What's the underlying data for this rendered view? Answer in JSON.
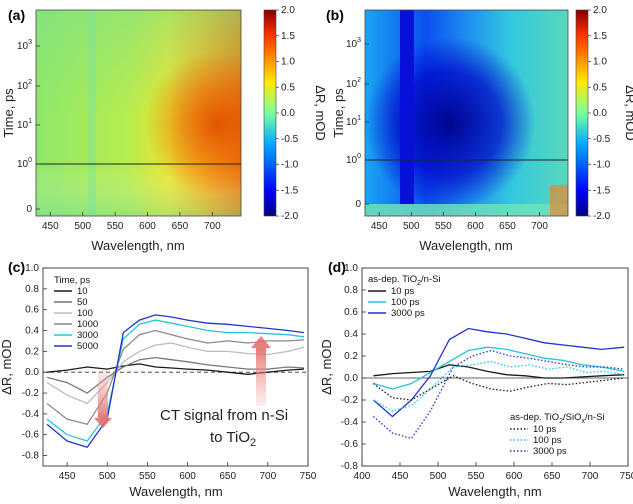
{
  "chart_data": [
    {
      "panel": "(a)",
      "type": "heatmap",
      "xlabel": "Wavelength, nm",
      "ylabel": "Time, ps",
      "colorbar_label": "ΔR, mOD",
      "xticks": [
        "450",
        "500",
        "550",
        "600",
        "650",
        "700"
      ],
      "yticks": [
        {
          "label": "0",
          "base": "0",
          "exp": ""
        },
        {
          "label": "10^0",
          "base": "10",
          "exp": "0"
        },
        {
          "label": "10^1",
          "base": "10",
          "exp": "1"
        },
        {
          "label": "10^2",
          "base": "10",
          "exp": "2"
        },
        {
          "label": "10^3",
          "base": "10",
          "exp": "3"
        }
      ],
      "cbar_ticks": [
        "2.0",
        "1.5",
        "1.0",
        "0.5",
        "0.0",
        "-0.5",
        "-1.0",
        "-1.5",
        "-2.0"
      ],
      "clim": [
        -2.0,
        2.0
      ],
      "reference_line_time_ps": 1
    },
    {
      "panel": "(b)",
      "type": "heatmap",
      "xlabel": "Wavelength, nm",
      "ylabel": "Time, ps",
      "colorbar_label": "ΔR, mOD",
      "xticks": [
        "450",
        "500",
        "550",
        "600",
        "650",
        "700"
      ],
      "yticks": [
        {
          "label": "0",
          "base": "0",
          "exp": ""
        },
        {
          "label": "10^0",
          "base": "10",
          "exp": "0"
        },
        {
          "label": "10^1",
          "base": "10",
          "exp": "1"
        },
        {
          "label": "10^2",
          "base": "10",
          "exp": "2"
        },
        {
          "label": "10^3",
          "base": "10",
          "exp": "3"
        }
      ],
      "cbar_ticks": [
        "2.0",
        "1.5",
        "1.0",
        "0.5",
        "0.0",
        "-0.5",
        "-1.0",
        "-1.5",
        "-2.0"
      ],
      "cbar_tick_display": [
        "2.0",
        "1.5",
        "1.0",
        "0.5",
        "0.0",
        "-0.5",
        "-1.0",
        "-1.5",
        "-2.0"
      ],
      "clim": [
        -2.0,
        2.0
      ],
      "reference_line_time_ps": 1
    },
    {
      "panel": "(c)",
      "type": "line",
      "xlabel": "Wavelength, nm",
      "ylabel": "ΔR, mOD",
      "xlim": [
        420,
        750
      ],
      "ylim": [
        -0.9,
        1.0
      ],
      "xticks": [
        "450",
        "500",
        "550",
        "600",
        "650",
        "700",
        "750"
      ],
      "yticks": [
        "1.0",
        "0.8",
        "0.6",
        "0.4",
        "0.2",
        "0.0",
        "-0.2",
        "-0.4",
        "-0.6",
        "-0.8"
      ],
      "legend_title": "Time, ps",
      "annotation_line1": "CT signal from n-Si",
      "annotation_line2_main": "to TiO",
      "annotation_line2_sub": "2",
      "series": [
        {
          "name": "10",
          "color": "#1a1a1a",
          "x": [
            425,
            450,
            475,
            500,
            520,
            540,
            560,
            580,
            600,
            625,
            650,
            675,
            700,
            725,
            745
          ],
          "y": [
            0.0,
            0.02,
            0.05,
            0.03,
            0.06,
            0.08,
            0.05,
            0.04,
            0.03,
            0.02,
            0.0,
            -0.02,
            0.0,
            0.02,
            0.03
          ]
        },
        {
          "name": "50",
          "color": "#777777",
          "x": [
            425,
            450,
            475,
            500,
            520,
            540,
            560,
            580,
            600,
            625,
            650,
            675,
            700,
            725,
            745
          ],
          "y": [
            -0.05,
            -0.1,
            -0.2,
            -0.05,
            0.05,
            0.12,
            0.14,
            0.12,
            0.1,
            0.07,
            0.05,
            0.03,
            0.03,
            0.05,
            0.04
          ]
        },
        {
          "name": "100",
          "color": "#bcbcbc",
          "x": [
            425,
            450,
            475,
            500,
            520,
            540,
            560,
            580,
            600,
            625,
            650,
            675,
            700,
            725,
            745
          ],
          "y": [
            -0.1,
            -0.22,
            -0.3,
            -0.1,
            0.1,
            0.2,
            0.26,
            0.28,
            0.24,
            0.2,
            0.2,
            0.18,
            0.17,
            0.2,
            0.24
          ]
        },
        {
          "name": "1000",
          "color": "#8a8a8a",
          "x": [
            425,
            450,
            475,
            500,
            520,
            540,
            560,
            580,
            600,
            625,
            650,
            675,
            700,
            725,
            745
          ],
          "y": [
            -0.3,
            -0.45,
            -0.5,
            -0.2,
            0.22,
            0.36,
            0.4,
            0.36,
            0.32,
            0.28,
            0.3,
            0.28,
            0.3,
            0.3,
            0.31
          ]
        },
        {
          "name": "3000",
          "color": "#27c4d8",
          "x": [
            425,
            450,
            475,
            500,
            520,
            540,
            560,
            580,
            600,
            625,
            650,
            675,
            700,
            725,
            745
          ],
          "y": [
            -0.45,
            -0.6,
            -0.66,
            -0.4,
            0.32,
            0.46,
            0.5,
            0.47,
            0.44,
            0.4,
            0.38,
            0.38,
            0.37,
            0.36,
            0.34
          ]
        },
        {
          "name": "5000",
          "color": "#2434cc",
          "x": [
            425,
            450,
            475,
            500,
            520,
            540,
            560,
            580,
            600,
            625,
            650,
            675,
            700,
            725,
            745
          ],
          "y": [
            -0.5,
            -0.66,
            -0.72,
            -0.45,
            0.38,
            0.5,
            0.55,
            0.53,
            0.5,
            0.47,
            0.46,
            0.44,
            0.42,
            0.4,
            0.38
          ]
        }
      ]
    },
    {
      "panel": "(d)",
      "type": "line",
      "xlabel": "Wavelength, nm",
      "ylabel": "ΔR, mOD",
      "xlim": [
        400,
        750
      ],
      "ylim": [
        -0.8,
        1.0
      ],
      "xticks": [
        "400",
        "450",
        "500",
        "550",
        "600",
        "650",
        "700",
        "750"
      ],
      "yticks": [
        "1.0",
        "0.8",
        "0.6",
        "0.4",
        "0.2",
        "0.0",
        "-0.2",
        "-0.4",
        "-0.6",
        "-0.8"
      ],
      "legend1_title_main": "as-dep. TiO",
      "legend1_title_sub": "2",
      "legend1_title_rest": "/n-Si",
      "legend2_title_main": "as-dep. TiO",
      "legend2_title_sub1": "2",
      "legend2_title_mid": "/SiO",
      "legend2_title_sub2": "x",
      "legend2_title_rest": "/n-Si",
      "series": [
        {
          "name": "10 ps",
          "group": 1,
          "dash": "solid",
          "color": "#1a1a1a",
          "x": [
            415,
            440,
            465,
            490,
            515,
            540,
            565,
            590,
            615,
            640,
            665,
            690,
            715,
            745
          ],
          "y": [
            0.02,
            0.04,
            0.05,
            0.06,
            0.12,
            0.1,
            0.06,
            0.03,
            0.02,
            0.0,
            0.0,
            0.01,
            0.02,
            0.03
          ]
        },
        {
          "name": "100 ps",
          "group": 1,
          "dash": "solid",
          "color": "#27c4d8",
          "x": [
            415,
            440,
            465,
            490,
            515,
            540,
            565,
            590,
            615,
            640,
            665,
            690,
            715,
            745
          ],
          "y": [
            -0.05,
            -0.1,
            -0.05,
            0.05,
            0.15,
            0.25,
            0.28,
            0.26,
            0.22,
            0.18,
            0.16,
            0.12,
            0.1,
            0.06
          ]
        },
        {
          "name": "3000 ps",
          "group": 1,
          "dash": "solid",
          "color": "#2434cc",
          "x": [
            415,
            440,
            465,
            490,
            515,
            540,
            565,
            590,
            615,
            640,
            665,
            690,
            715,
            745
          ],
          "y": [
            -0.2,
            -0.35,
            -0.2,
            0.02,
            0.35,
            0.45,
            0.42,
            0.4,
            0.36,
            0.32,
            0.3,
            0.28,
            0.26,
            0.28
          ]
        },
        {
          "name": "10 ps",
          "group": 2,
          "dash": "dot",
          "color": "#1a1a1a",
          "x": [
            415,
            440,
            465,
            490,
            520,
            545,
            570,
            595,
            620,
            645,
            670,
            695,
            720,
            745
          ],
          "y": [
            -0.05,
            -0.18,
            -0.2,
            -0.1,
            0.02,
            -0.05,
            -0.1,
            -0.12,
            -0.08,
            -0.05,
            -0.06,
            -0.04,
            -0.02,
            0.0
          ]
        },
        {
          "name": "100 ps",
          "group": 2,
          "dash": "dot",
          "color": "#27c4d8",
          "x": [
            415,
            440,
            465,
            490,
            520,
            545,
            570,
            595,
            620,
            645,
            670,
            695,
            720,
            745
          ],
          "y": [
            -0.2,
            -0.3,
            -0.25,
            -0.1,
            0.1,
            0.12,
            0.15,
            0.1,
            0.12,
            0.08,
            0.1,
            0.05,
            0.06,
            0.03
          ]
        },
        {
          "name": "3000 ps",
          "group": 2,
          "dash": "dot",
          "color": "#2434cc",
          "x": [
            415,
            440,
            465,
            490,
            520,
            545,
            570,
            595,
            620,
            645,
            670,
            695,
            720,
            745
          ],
          "y": [
            -0.35,
            -0.5,
            -0.55,
            -0.3,
            0.1,
            0.2,
            0.25,
            0.2,
            0.18,
            0.15,
            0.12,
            0.1,
            0.1,
            0.08
          ]
        }
      ]
    }
  ]
}
